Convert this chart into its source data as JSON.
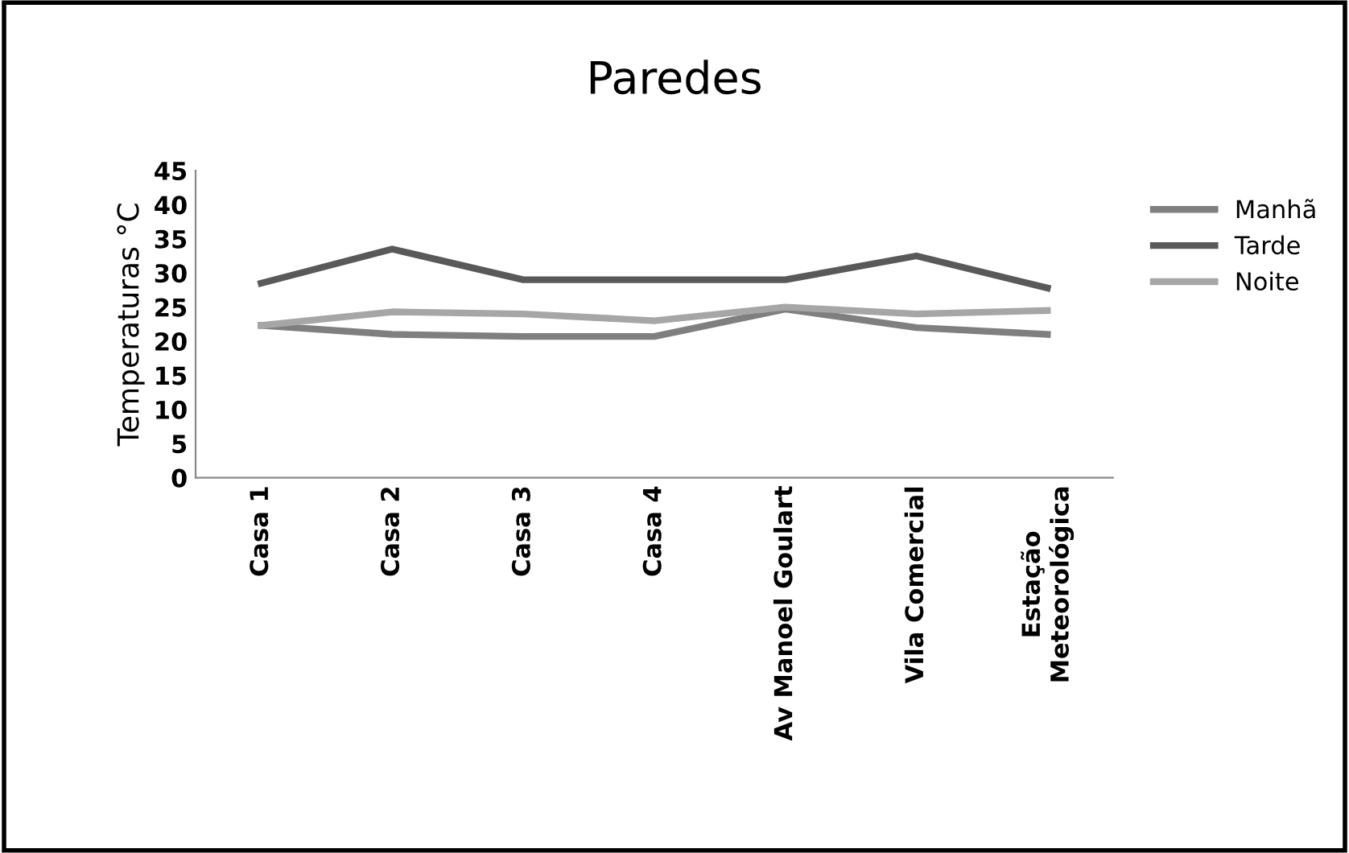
{
  "chart_data": {
    "type": "line",
    "title": "Paredes",
    "ylabel": "Temperaturas °C",
    "categories": [
      "Casa 1",
      "Casa 2",
      "Casa 3",
      "Casa 4",
      "Av Manoel Goulart",
      "Vila Comercial",
      "Estação\nMeteorológica"
    ],
    "series": [
      {
        "name": "Manhã",
        "color": "#7f7f7f",
        "values": [
          22.3,
          21,
          20.7,
          20.7,
          24.7,
          22,
          21
        ]
      },
      {
        "name": "Tarde",
        "color": "#595959",
        "values": [
          28.5,
          33.5,
          29,
          29,
          29,
          32.5,
          27.8
        ]
      },
      {
        "name": "Noite",
        "color": "#a6a6a6",
        "values": [
          22.3,
          24.3,
          24,
          23,
          25,
          24,
          24.5
        ]
      }
    ],
    "ylim": [
      0,
      45
    ],
    "yticks": [
      0,
      5,
      10,
      15,
      20,
      25,
      30,
      35,
      40,
      45
    ],
    "grid": false,
    "legend": "right",
    "marker": "none",
    "line_style": "solid"
  }
}
